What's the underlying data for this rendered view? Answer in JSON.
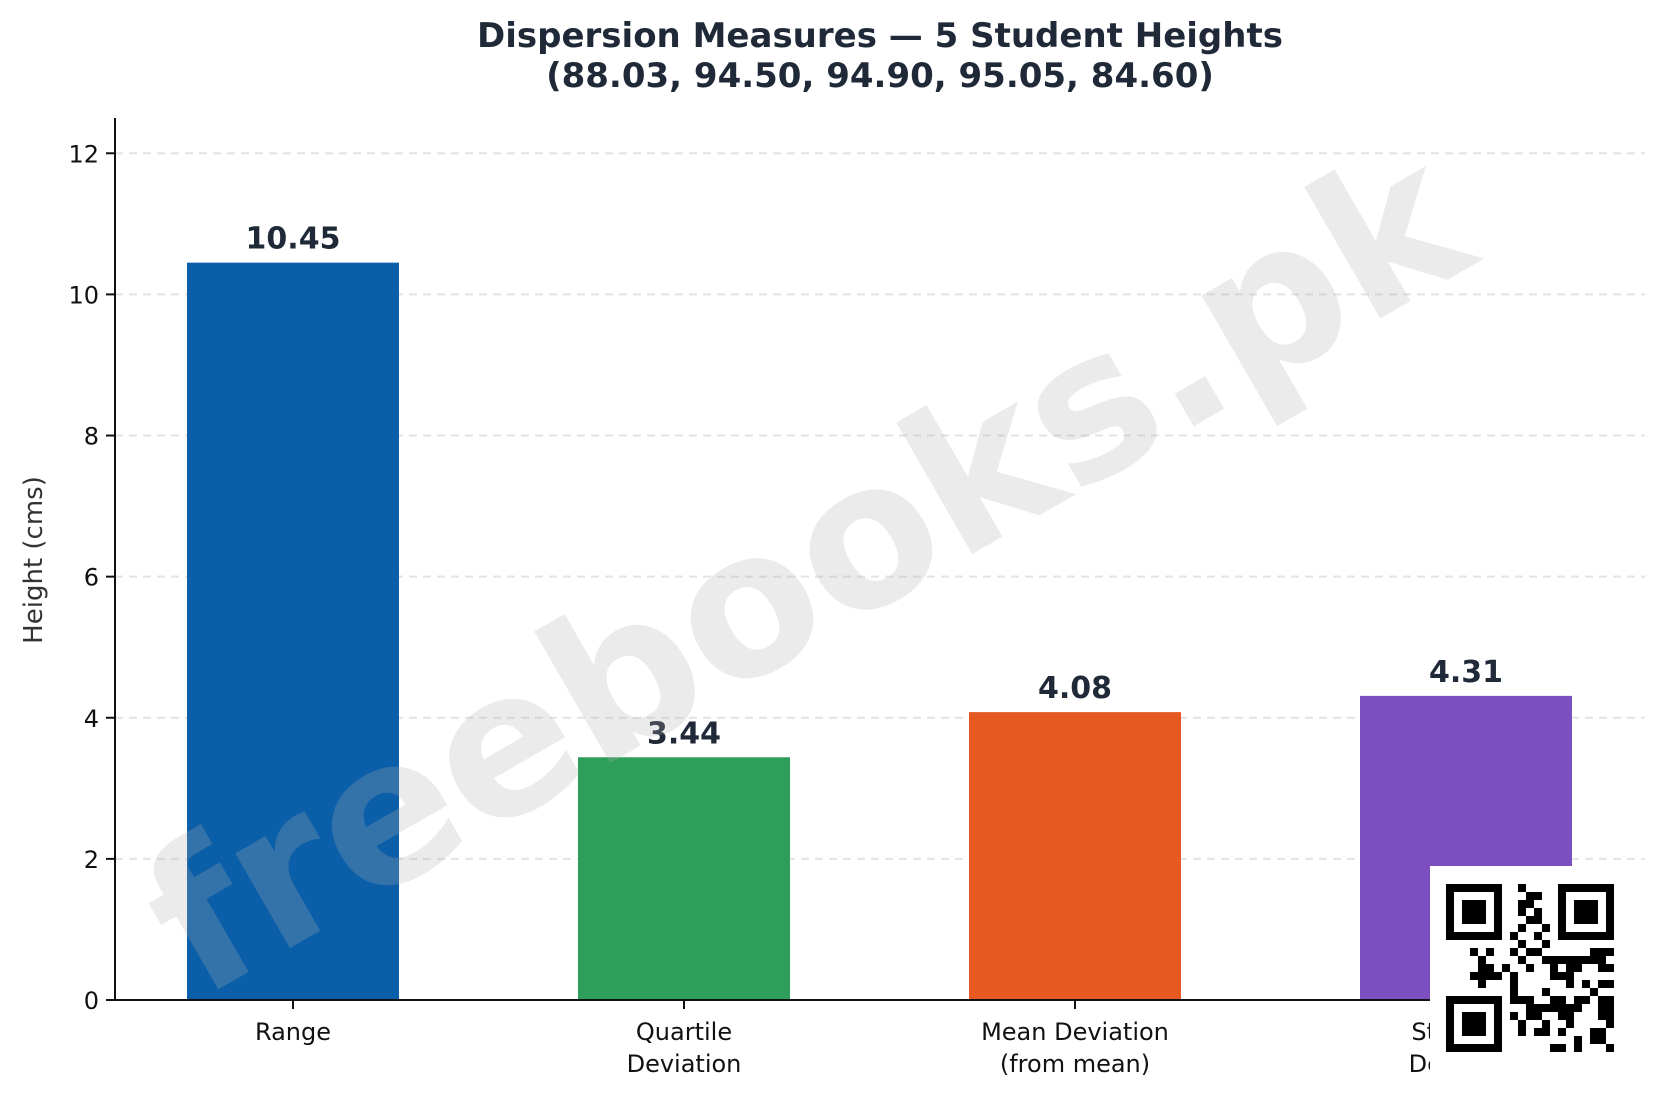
{
  "chart_data": {
    "type": "bar",
    "title": "Dispersion Measures — 5 Student Heights",
    "subtitle": "(88.03, 94.50, 94.90, 95.05, 84.60)",
    "xlabel": "",
    "ylabel": "Height (cms)",
    "categories": [
      [
        "Range"
      ],
      [
        "Quartile",
        "Deviation"
      ],
      [
        "Mean Deviation",
        "(from mean)"
      ],
      [
        "Standard",
        "Deviation"
      ]
    ],
    "values": [
      10.45,
      3.44,
      4.08,
      4.31
    ],
    "value_labels": [
      "10.45",
      "3.44",
      "4.08",
      "4.31"
    ],
    "colors": [
      "#0b5ea8",
      "#2e9e5b",
      "#e65a22",
      "#7b4fc0"
    ],
    "ylim": [
      0,
      12.5
    ],
    "yticks": [
      0,
      2,
      4,
      6,
      8,
      10,
      12
    ],
    "grid": "y-dashed",
    "legend": "none"
  },
  "watermark": "freebooks.pk",
  "qr_code": "qr-code-icon"
}
